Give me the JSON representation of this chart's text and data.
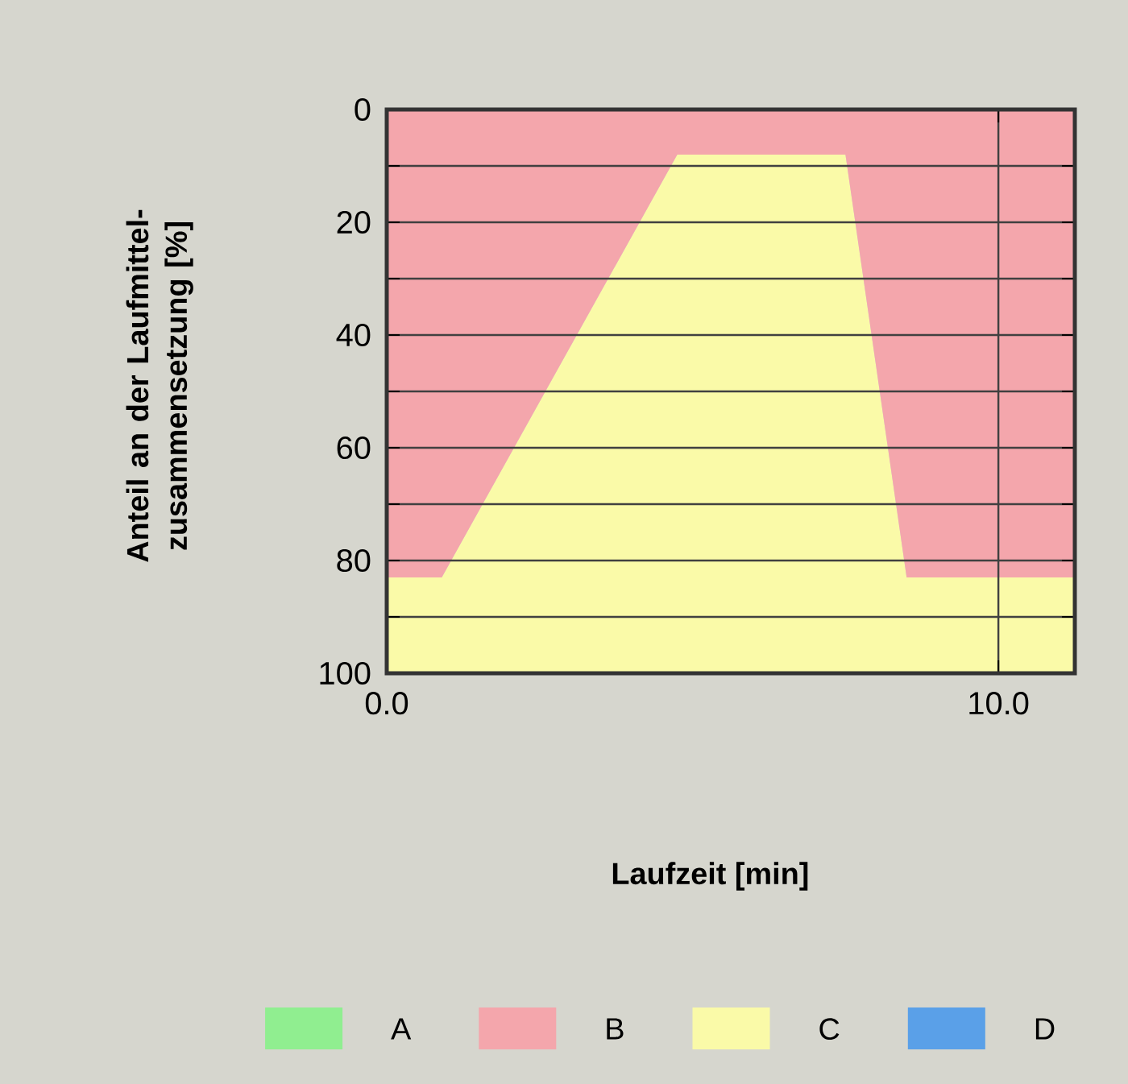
{
  "chart_data": {
    "type": "area",
    "stacked": true,
    "xlabel": "Laufzeit [min]",
    "ylabel": "Anteil an der Laufmittel-zusammensetzung [%]",
    "x": [
      0,
      0.9,
      4.75,
      7.5,
      8.5,
      11.25
    ],
    "series": [
      {
        "name": "A",
        "color": "#90ee90",
        "values": [
          null,
          null,
          null,
          null,
          null,
          null
        ]
      },
      {
        "name": "B",
        "color": "#f4a6ac",
        "values": [
          83,
          83,
          8,
          8,
          83,
          83
        ]
      },
      {
        "name": "C",
        "color": "#fafaa8",
        "values": [
          17,
          17,
          92,
          92,
          17,
          17
        ]
      },
      {
        "name": "D",
        "color": "#5aa0e8",
        "values": [
          null,
          null,
          null,
          null,
          null,
          null
        ]
      }
    ],
    "xlim": [
      0,
      11.25
    ],
    "xticks": [
      {
        "value": 0,
        "label": "0.0"
      },
      {
        "value": 10,
        "label": "10.0"
      }
    ],
    "ylim": [
      100,
      0
    ],
    "yticks": [
      0,
      {
        "value": 10,
        "label": null
      },
      20,
      {
        "value": 30,
        "label": null
      },
      40,
      {
        "value": 50,
        "label": null
      },
      60,
      {
        "value": 70,
        "label": null
      },
      80,
      {
        "value": 90,
        "label": null
      },
      100
    ],
    "grid": true,
    "legend": "bottom"
  }
}
